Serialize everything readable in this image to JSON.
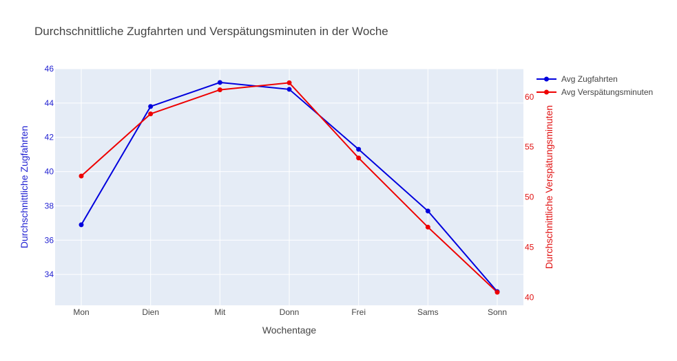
{
  "chart_data": {
    "type": "line",
    "title": "Durchschnittliche Zugfahrten und Verspätungsminuten in der Woche",
    "xlabel": "Wochentage",
    "categories": [
      "Mon",
      "Dien",
      "Mit",
      "Donn",
      "Frei",
      "Sams",
      "Sonn"
    ],
    "y_left": {
      "label": "Durchschnittliche Zugfahrten",
      "range": [
        32.2,
        46
      ],
      "ticks": [
        34,
        36,
        38,
        40,
        42,
        44,
        46
      ],
      "color": "#1f1fd1"
    },
    "y_right": {
      "label": "Durchschnittliche Verspätungsminuten",
      "range": [
        39.2,
        62.8
      ],
      "ticks": [
        40,
        45,
        50,
        55,
        60
      ],
      "color": "#e01010"
    },
    "series": [
      {
        "name": "Avg Zugfahrten",
        "axis": "left",
        "color": "#0000dd",
        "values": [
          36.9,
          43.8,
          45.2,
          44.8,
          41.3,
          37.7,
          33.0
        ]
      },
      {
        "name": "Avg Verspätungsminuten",
        "axis": "right",
        "color": "#ee0000",
        "values": [
          52.1,
          58.3,
          60.7,
          61.4,
          53.9,
          47.0,
          40.5
        ]
      }
    ],
    "grid": true,
    "legend": "top-right",
    "plot_background": "#e5ecf6"
  }
}
